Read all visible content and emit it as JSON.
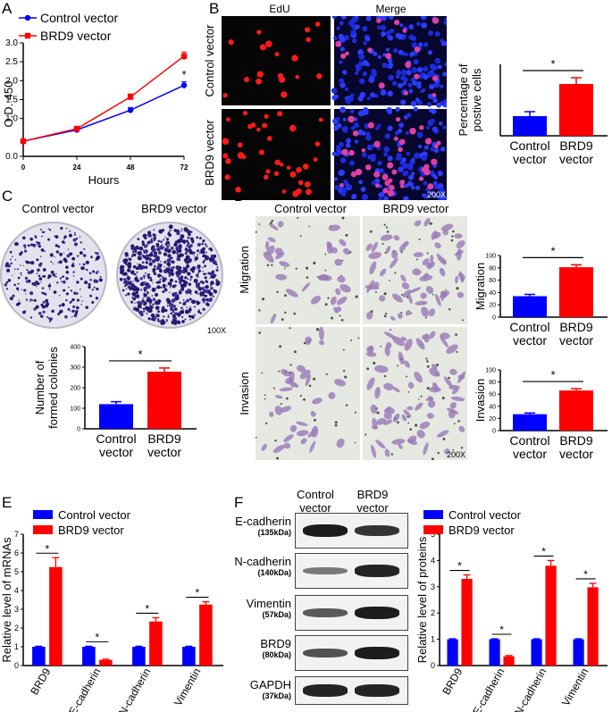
{
  "panel_labels": {
    "a": "A",
    "b": "B",
    "c": "C",
    "d": "D",
    "e": "E",
    "f": "F"
  },
  "panel_b": {
    "col1": "EdU",
    "col2": "Merge",
    "row1": "Control vector",
    "row2": "BRD9 vector",
    "magnification": "200X"
  },
  "panel_c": {
    "left_label": "Control vector",
    "right_label": "BRD9 vector",
    "magnification": "100X"
  },
  "panel_d": {
    "col1": "Control vector",
    "col2": "BRD9 vector",
    "row1": "Migration",
    "row2": "Invasion",
    "magnification": "200X"
  },
  "panel_f": {
    "col1": "Control vector",
    "col2": "BRD9 vector",
    "blots": [
      {
        "name": "E-cadherin",
        "kda": "(135kDa)"
      },
      {
        "name": "N-cadherin",
        "kda": "(140kDa)"
      },
      {
        "name": "Vimentin",
        "kda": "(57kDa)"
      },
      {
        "name": "BRD9",
        "kda": "(80kDa)"
      },
      {
        "name": "GAPDH",
        "kda": "(37kDa)"
      }
    ]
  },
  "colors": {
    "control": "#0000ff",
    "brd9": "#ff0000"
  },
  "chart_data": [
    {
      "id": "A",
      "type": "line",
      "xlabel": "Hours",
      "ylabel": "O.D. 450",
      "x": [
        0,
        24,
        48,
        72
      ],
      "xticks": [
        "0",
        "24",
        "48",
        "72"
      ],
      "yticks": [
        "0.0",
        "1.0",
        "1.5",
        "2.0",
        "2.5",
        "3.0"
      ],
      "ytick_values": [
        0,
        1.0,
        1.5,
        2.0,
        2.5,
        3.0
      ],
      "ylim": [
        0,
        3.0
      ],
      "series": [
        {
          "name": "Control vector",
          "values": [
            0.4,
            0.7,
            1.22,
            1.88
          ],
          "err": [
            0.03,
            0.04,
            0.07,
            0.09
          ]
        },
        {
          "name": "BRD9 vector",
          "values": [
            0.4,
            0.73,
            1.57,
            2.65
          ],
          "err": [
            0.03,
            0.04,
            0.08,
            0.11
          ]
        }
      ],
      "annotation": "*"
    },
    {
      "id": "B",
      "type": "bar",
      "ylabel": "Percentage of postive cells",
      "categories": [
        "Control vector",
        "BRD9 vector"
      ],
      "values": [
        11,
        29
      ],
      "err": [
        2.5,
        3.5
      ],
      "ylim": [
        0,
        40
      ],
      "annotation": "*"
    },
    {
      "id": "C",
      "type": "bar",
      "ylabel": "Number of formed colonies",
      "categories": [
        "Control vector",
        "BRD9 vector"
      ],
      "values": [
        120,
        278
      ],
      "err": [
        12,
        18
      ],
      "ylim": [
        0,
        400
      ],
      "yticks": [
        "0",
        "100",
        "200",
        "300",
        "400"
      ],
      "annotation": "*"
    },
    {
      "id": "D1",
      "type": "bar",
      "ylabel": "Migration",
      "categories": [
        "Control vector",
        "BRD9 vector"
      ],
      "values": [
        34,
        81
      ],
      "err": [
        3,
        4
      ],
      "ylim": [
        0,
        100
      ],
      "yticks": [
        "0",
        "20",
        "40",
        "60",
        "80",
        "100"
      ],
      "annotation": "*"
    },
    {
      "id": "D2",
      "type": "bar",
      "ylabel": "Invasion",
      "categories": [
        "Control vector",
        "BRD9 vector"
      ],
      "values": [
        27,
        66
      ],
      "err": [
        2,
        3
      ],
      "ylim": [
        0,
        100
      ],
      "yticks": [
        "0",
        "20",
        "40",
        "60",
        "80",
        "100"
      ],
      "annotation": "*"
    },
    {
      "id": "E",
      "type": "bar",
      "ylabel": "Relative level of mRNAs",
      "categories": [
        "BRD9",
        "E-cadherin",
        "N-cadherin",
        "Vimentin"
      ],
      "ylim": [
        0,
        7
      ],
      "yticks": [
        "0",
        "1",
        "2",
        "3",
        "4",
        "5",
        "6",
        "7"
      ],
      "series": [
        {
          "name": "Control vector",
          "values": [
            1.0,
            1.0,
            1.0,
            1.0
          ],
          "err": [
            0.03,
            0.03,
            0.03,
            0.03
          ]
        },
        {
          "name": "BRD9 vector",
          "values": [
            5.25,
            0.3,
            2.35,
            3.25
          ],
          "err": [
            0.5,
            0.04,
            0.2,
            0.15
          ]
        }
      ],
      "annotation": "*"
    },
    {
      "id": "F",
      "type": "bar",
      "ylabel": "Relative level of proteins",
      "categories": [
        "BRD9",
        "E-cadherin",
        "N-cadherin",
        "Vimentin"
      ],
      "ylim": [
        0,
        5
      ],
      "yticks": [
        "0",
        "1",
        "2",
        "3",
        "4",
        "5"
      ],
      "series": [
        {
          "name": "Control vector",
          "values": [
            1.0,
            1.0,
            1.0,
            1.0
          ],
          "err": [
            0.02,
            0.02,
            0.02,
            0.02
          ]
        },
        {
          "name": "BRD9 vector",
          "values": [
            3.3,
            0.35,
            3.8,
            2.98
          ],
          "err": [
            0.15,
            0.03,
            0.2,
            0.15
          ]
        }
      ],
      "annotation": "*"
    }
  ]
}
